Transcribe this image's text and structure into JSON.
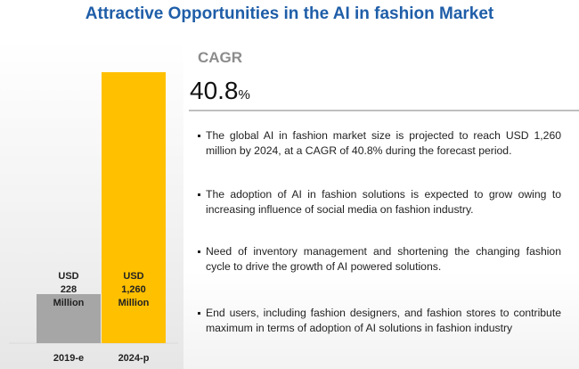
{
  "title": "Attractive Opportunities in the AI in fashion Market",
  "cagr": {
    "label": "CAGR",
    "value": "40.8",
    "unit": "%"
  },
  "bullets": [
    "The global AI in fashion market size is projected to reach USD 1,260 million by 2024, at a CAGR of 40.8% during the forecast period.",
    "The adoption of AI in fashion solutions is expected to grow owing to increasing influence of social media on fashion industry.",
    "Need of inventory management and shortening the changing fashion cycle to drive the growth of AI powered solutions.",
    "End users, including fashion designers, and fashion stores to contribute maximum in terms of adoption of AI solutions in fashion industry"
  ],
  "chart_data": {
    "type": "bar",
    "title": "",
    "xlabel": "",
    "ylabel": "",
    "categories": [
      "2019-e",
      "2024-p"
    ],
    "values": [
      228,
      1260
    ],
    "unit": "USD Million",
    "data_labels": [
      [
        "USD",
        "228",
        "Million"
      ],
      [
        "USD",
        "1,260",
        "Million"
      ]
    ],
    "colors": [
      "#a6a6a6",
      "#ffc000"
    ],
    "ylim": [
      0,
      1260
    ],
    "grid": false
  }
}
